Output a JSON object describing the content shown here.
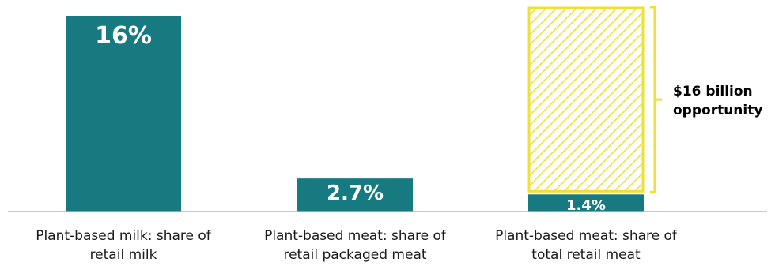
{
  "chart_data": {
    "type": "bar",
    "title": "",
    "xlabel": "",
    "ylabel": "",
    "categories": [
      [
        "Plant-based milk: share of",
        "retail milk"
      ],
      [
        "Plant-based meat: share of",
        "retail packaged meat"
      ],
      [
        "Plant-based meat: share of",
        "total retail meat"
      ]
    ],
    "values": [
      16,
      2.7,
      1.4
    ],
    "value_labels": [
      "16%",
      "2.7%",
      "1.4%"
    ],
    "ylim": [
      0,
      16
    ],
    "grid": false,
    "legend": "none",
    "opportunity": {
      "category_index": 2,
      "target_value": 16,
      "label_lines": [
        "$16 billion",
        "opportunity"
      ]
    }
  },
  "colors": {
    "bar": "#177a80",
    "opportunity_outline": "#efe035",
    "opportunity_hatch": "#ece23a",
    "bracket": "#efe035",
    "baseline": "#b5b5b5"
  }
}
